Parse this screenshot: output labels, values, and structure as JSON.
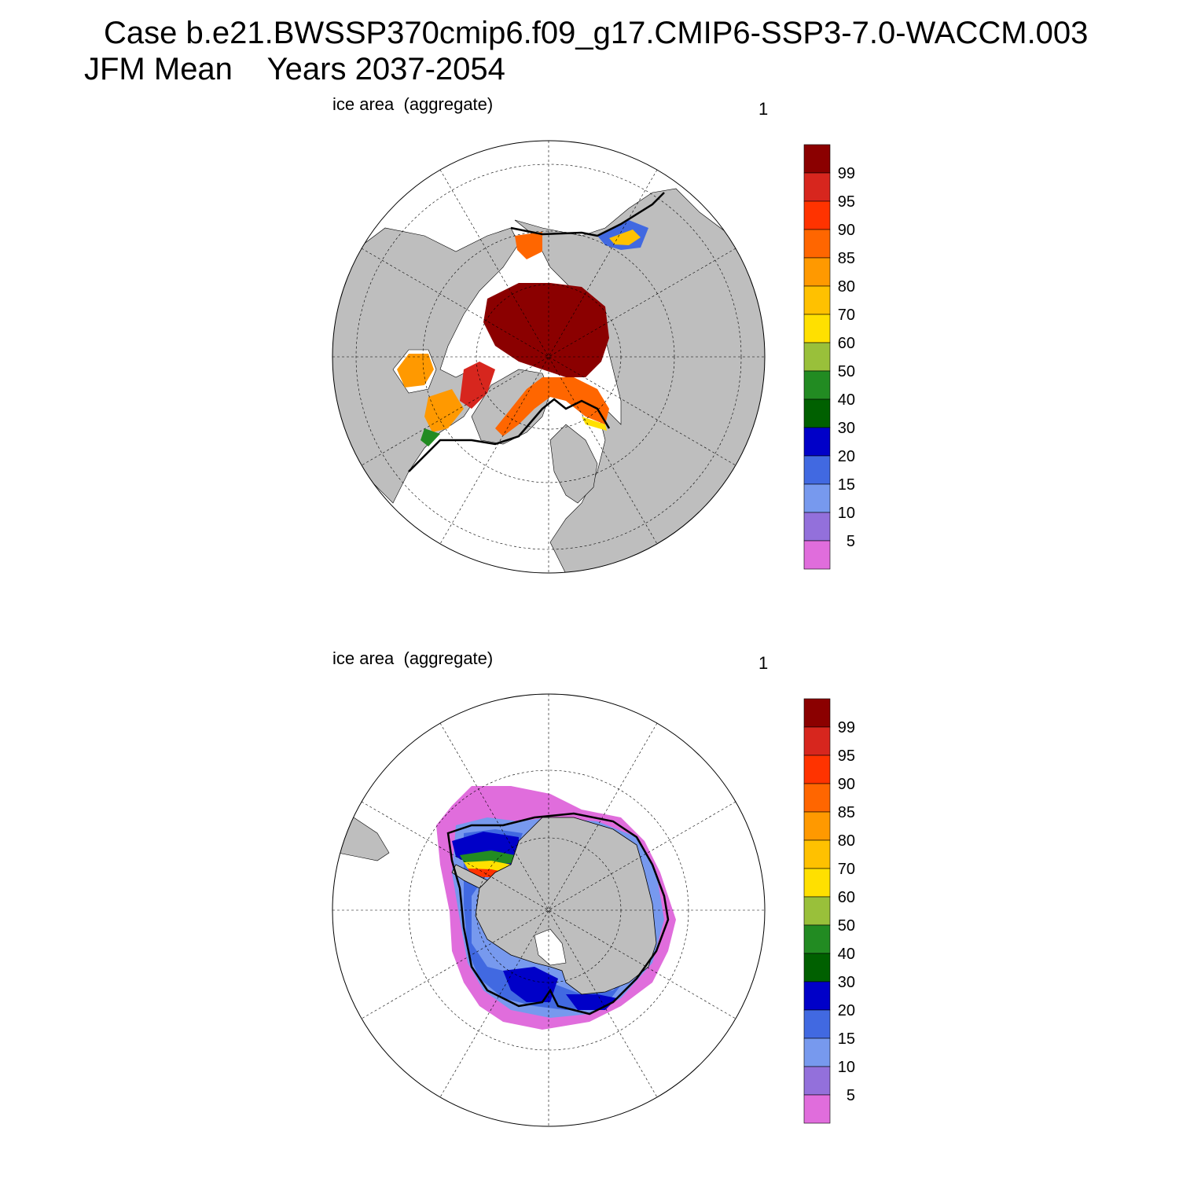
{
  "header": {
    "line1": "Case b.e21.BWSSP370cmip6.f09_g17.CMIP6-SSP3-7.0-WACCM.003",
    "line2": "JFM Mean    Years 2037-2054"
  },
  "panels": [
    {
      "hemisphere": "north",
      "label": "ice area  (aggregate)",
      "number": "1"
    },
    {
      "hemisphere": "south",
      "label": "ice area  (aggregate)",
      "number": "1"
    }
  ],
  "colorbar": {
    "labels": [
      "99",
      "95",
      "90",
      "85",
      "80",
      "70",
      "60",
      "50",
      "40",
      "30",
      "20",
      "15",
      "10",
      "5"
    ],
    "colors": [
      "#8b0000",
      "#d7261e",
      "#ff3300",
      "#ff6600",
      "#ff9900",
      "#ffc100",
      "#ffe000",
      "#99c03a",
      "#228b22",
      "#006000",
      "#0000c8",
      "#4169e1",
      "#7799ee",
      "#9370db",
      "#e06ddc"
    ]
  },
  "map_colors": {
    "land": "#bebebe",
    "ocean": "#ffffff",
    "grid": "#000000",
    "ice_edge": "#000000"
  }
}
